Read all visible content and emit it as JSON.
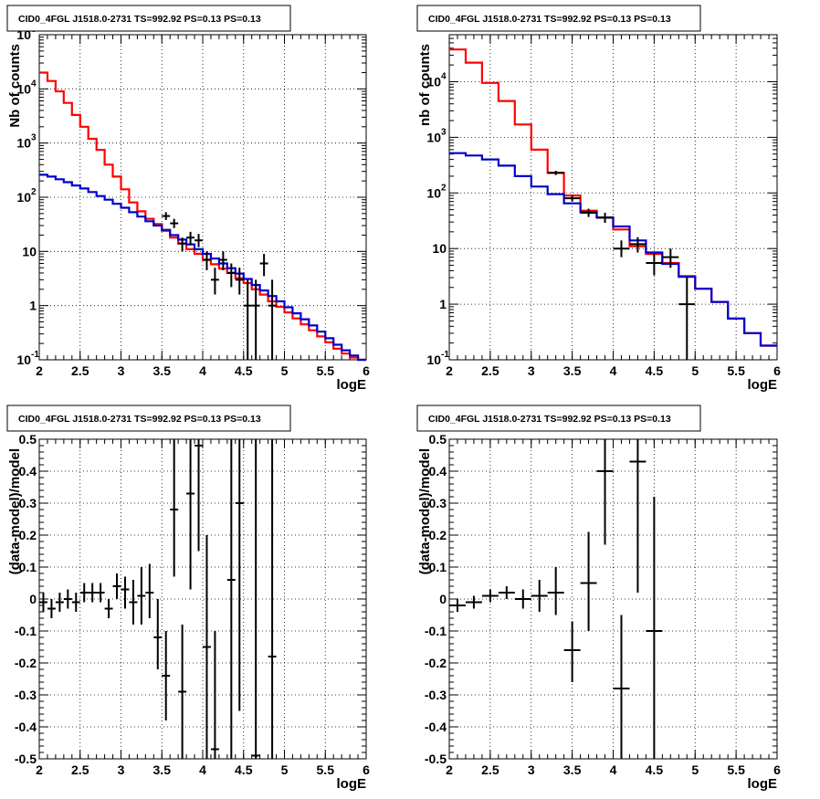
{
  "chart_data": [
    {
      "type": "line",
      "scale": "log",
      "title": "CID0_4FGL J1518.0-2731 TS=992.92 PS=0.13 PS=0.13",
      "xlabel": "logE",
      "ylabel": "Nb of counts",
      "xlim": [
        2,
        6
      ],
      "ylim": [
        0.1,
        100000
      ],
      "grid": true,
      "x_ticks": [
        "2",
        "2.5",
        "3",
        "3.5",
        "4",
        "4.5",
        "5",
        "5.5",
        "6"
      ],
      "y_ticks": [
        {
          "value": 0.1,
          "label": "10",
          "sup": "-1"
        },
        {
          "value": 1,
          "label": "1",
          "sup": ""
        },
        {
          "value": 10,
          "label": "10",
          "sup": ""
        },
        {
          "value": 100,
          "label": "10",
          "sup": "2"
        },
        {
          "value": 1000,
          "label": "10",
          "sup": "3"
        },
        {
          "value": 10000,
          "label": "10",
          "sup": "4"
        },
        {
          "value": 100000,
          "label": "10",
          "sup": "5"
        }
      ],
      "edges": [
        2.0,
        2.1,
        2.2,
        2.3,
        2.4,
        2.5,
        2.6,
        2.7,
        2.8,
        2.9,
        3.0,
        3.1,
        3.2,
        3.3,
        3.4,
        3.5,
        3.6,
        3.7,
        3.8,
        3.9,
        4.0,
        4.1,
        4.2,
        4.3,
        4.4,
        4.5,
        4.6,
        4.7,
        4.8,
        4.9,
        5.0,
        5.1,
        5.2,
        5.3,
        5.4,
        5.5,
        5.6,
        5.7,
        5.8,
        5.9,
        6.0
      ],
      "series": [
        {
          "color": "#ff0000",
          "style": "step",
          "values": [
            20000,
            14000,
            9000,
            5500,
            3300,
            2000,
            1200,
            750,
            400,
            240,
            140,
            80,
            55,
            40,
            32,
            24,
            18,
            14,
            11,
            9,
            7,
            5.8,
            4.8,
            4.0,
            3.2,
            2.6,
            2.0,
            1.6,
            1.2,
            0.95,
            0.75,
            0.58,
            0.45,
            0.35,
            0.27,
            0.21,
            0.16,
            0.13,
            0.11,
            0.1
          ]
        },
        {
          "color": "#0000cc",
          "style": "step",
          "values": [
            260,
            240,
            215,
            190,
            165,
            145,
            125,
            105,
            90,
            76,
            64,
            53,
            44,
            36,
            30,
            25,
            20,
            16.5,
            13.5,
            11,
            9,
            7.4,
            6,
            4.9,
            3.9,
            3.1,
            2.4,
            1.9,
            1.5,
            1.2,
            0.93,
            0.72,
            0.56,
            0.43,
            0.33,
            0.25,
            0.19,
            0.15,
            0.12,
            0.1
          ]
        }
      ],
      "points": [
        {
          "x": 3.55,
          "y": 45,
          "ylo": 38,
          "yhi": 53
        },
        {
          "x": 3.65,
          "y": 33,
          "ylo": 27,
          "yhi": 40
        },
        {
          "x": 3.75,
          "y": 14,
          "ylo": 10,
          "yhi": 18
        },
        {
          "x": 3.85,
          "y": 18,
          "ylo": 13,
          "yhi": 23
        },
        {
          "x": 3.95,
          "y": 16,
          "ylo": 12,
          "yhi": 21
        },
        {
          "x": 4.05,
          "y": 7,
          "ylo": 4.5,
          "yhi": 10
        },
        {
          "x": 4.15,
          "y": 3,
          "ylo": 1.6,
          "yhi": 5
        },
        {
          "x": 4.25,
          "y": 7,
          "ylo": 4.5,
          "yhi": 10
        },
        {
          "x": 4.35,
          "y": 4,
          "ylo": 2.2,
          "yhi": 6
        },
        {
          "x": 4.45,
          "y": 3,
          "ylo": 1.6,
          "yhi": 5
        },
        {
          "x": 4.55,
          "y": 1,
          "ylo": 0.1,
          "yhi": 3
        },
        {
          "x": 4.65,
          "y": 1,
          "ylo": 0.1,
          "yhi": 3
        },
        {
          "x": 4.75,
          "y": 6,
          "ylo": 3.5,
          "yhi": 9
        },
        {
          "x": 4.85,
          "y": 1,
          "ylo": 0.1,
          "yhi": 3
        }
      ]
    },
    {
      "type": "line",
      "scale": "log",
      "title": "CID0_4FGL J1518.0-2731 TS=992.92 PS=0.13 PS=0.13",
      "xlabel": "logE",
      "ylabel": "nb of counts",
      "xlim": [
        2,
        6
      ],
      "ylim": [
        0.1,
        70000
      ],
      "grid": true,
      "x_ticks": [
        "2",
        "2.5",
        "3",
        "3.5",
        "4",
        "4.5",
        "5",
        "5.5",
        "6"
      ],
      "y_ticks": [
        {
          "value": 0.1,
          "label": "10",
          "sup": "-1"
        },
        {
          "value": 1,
          "label": "1",
          "sup": ""
        },
        {
          "value": 10,
          "label": "10",
          "sup": ""
        },
        {
          "value": 100,
          "label": "10",
          "sup": "2"
        },
        {
          "value": 1000,
          "label": "10",
          "sup": "3"
        },
        {
          "value": 10000,
          "label": "10",
          "sup": "4"
        }
      ],
      "edges": [
        2.0,
        2.2,
        2.4,
        2.6,
        2.8,
        3.0,
        3.2,
        3.4,
        3.6,
        3.8,
        4.0,
        4.2,
        4.4,
        4.6,
        4.8,
        5.0,
        5.2,
        5.4,
        5.6,
        5.8,
        6.0
      ],
      "series": [
        {
          "color": "#ff0000",
          "style": "step",
          "values": [
            38000,
            22000,
            9500,
            4500,
            1700,
            600,
            230,
            90,
            48,
            36,
            22,
            11,
            8,
            5.5,
            3.2,
            1.9,
            1.1,
            0.55,
            0.3,
            0.18
          ]
        },
        {
          "color": "#0000cc",
          "style": "step",
          "values": [
            520,
            470,
            400,
            310,
            200,
            130,
            95,
            65,
            45,
            36,
            25,
            14,
            8.5,
            5.3,
            3.1,
            1.9,
            1.1,
            0.55,
            0.3,
            0.18
          ]
        }
      ],
      "points": [
        {
          "x": 3.3,
          "y": 230,
          "ylo": 210,
          "yhi": 250
        },
        {
          "x": 3.5,
          "y": 80,
          "ylo": 70,
          "yhi": 90
        },
        {
          "x": 3.7,
          "y": 44,
          "ylo": 37,
          "yhi": 52
        },
        {
          "x": 3.9,
          "y": 36,
          "ylo": 29,
          "yhi": 44
        },
        {
          "x": 4.1,
          "y": 10,
          "ylo": 7,
          "yhi": 14
        },
        {
          "x": 4.3,
          "y": 12,
          "ylo": 8.5,
          "yhi": 16
        },
        {
          "x": 4.5,
          "y": 5.5,
          "ylo": 3.3,
          "yhi": 8
        },
        {
          "x": 4.7,
          "y": 7,
          "ylo": 4.5,
          "yhi": 10
        },
        {
          "x": 4.9,
          "y": 1,
          "ylo": 0.1,
          "yhi": 3
        }
      ]
    },
    {
      "type": "scatter",
      "scale": "linear",
      "title": "CID0_4FGL J1518.0-2731 TS=992.92 PS=0.13 PS=0.13",
      "xlabel": "logE",
      "ylabel": "(data-model)/model",
      "xlim": [
        2,
        6
      ],
      "ylim": [
        -0.5,
        0.5
      ],
      "grid": true,
      "x_ticks": [
        "2",
        "2.5",
        "3",
        "3.5",
        "4",
        "4.5",
        "5",
        "5.5",
        "6"
      ],
      "y_ticks": [
        {
          "value": -0.5,
          "label": "-0.5",
          "sup": ""
        },
        {
          "value": -0.4,
          "label": "-0.4",
          "sup": ""
        },
        {
          "value": -0.3,
          "label": "-0.3",
          "sup": ""
        },
        {
          "value": -0.2,
          "label": "-0.2",
          "sup": ""
        },
        {
          "value": -0.1,
          "label": "-0.1",
          "sup": ""
        },
        {
          "value": 0,
          "label": "0",
          "sup": ""
        },
        {
          "value": 0.1,
          "label": "0.1",
          "sup": ""
        },
        {
          "value": 0.2,
          "label": "0.2",
          "sup": ""
        },
        {
          "value": 0.3,
          "label": "0.3",
          "sup": ""
        },
        {
          "value": 0.4,
          "label": "0.4",
          "sup": ""
        },
        {
          "value": 0.5,
          "label": "0.5",
          "sup": ""
        }
      ],
      "halfwidth": 0.05,
      "points": [
        {
          "x": 2.05,
          "y": -0.01,
          "ylo": -0.04,
          "yhi": 0.02
        },
        {
          "x": 2.15,
          "y": -0.03,
          "ylo": -0.06,
          "yhi": 0.0
        },
        {
          "x": 2.25,
          "y": -0.01,
          "ylo": -0.04,
          "yhi": 0.02
        },
        {
          "x": 2.35,
          "y": 0.0,
          "ylo": -0.03,
          "yhi": 0.03
        },
        {
          "x": 2.45,
          "y": -0.01,
          "ylo": -0.04,
          "yhi": 0.02
        },
        {
          "x": 2.55,
          "y": 0.02,
          "ylo": -0.01,
          "yhi": 0.05
        },
        {
          "x": 2.65,
          "y": 0.02,
          "ylo": -0.01,
          "yhi": 0.05
        },
        {
          "x": 2.75,
          "y": 0.02,
          "ylo": -0.01,
          "yhi": 0.05
        },
        {
          "x": 2.85,
          "y": -0.03,
          "ylo": -0.06,
          "yhi": 0.0
        },
        {
          "x": 2.95,
          "y": 0.04,
          "ylo": 0.0,
          "yhi": 0.08
        },
        {
          "x": 3.05,
          "y": 0.03,
          "ylo": -0.03,
          "yhi": 0.07
        },
        {
          "x": 3.15,
          "y": -0.01,
          "ylo": -0.08,
          "yhi": 0.06
        },
        {
          "x": 3.25,
          "y": 0.01,
          "ylo": -0.08,
          "yhi": 0.1
        },
        {
          "x": 3.35,
          "y": 0.02,
          "ylo": -0.06,
          "yhi": 0.11
        },
        {
          "x": 3.45,
          "y": -0.12,
          "ylo": -0.22,
          "yhi": 0.0
        },
        {
          "x": 3.55,
          "y": -0.24,
          "ylo": -0.38,
          "yhi": -0.1
        },
        {
          "x": 3.65,
          "y": 0.28,
          "ylo": 0.07,
          "yhi": 0.5
        },
        {
          "x": 3.75,
          "y": -0.29,
          "ylo": -0.5,
          "yhi": -0.08
        },
        {
          "x": 3.85,
          "y": 0.33,
          "ylo": 0.03,
          "yhi": 0.5
        },
        {
          "x": 3.95,
          "y": 0.48,
          "ylo": 0.15,
          "yhi": 0.5
        },
        {
          "x": 4.05,
          "y": -0.15,
          "ylo": -0.5,
          "yhi": 0.2
        },
        {
          "x": 4.15,
          "y": -0.47,
          "ylo": -0.5,
          "yhi": -0.1
        },
        {
          "x": 4.35,
          "y": 0.06,
          "ylo": -0.5,
          "yhi": 0.5
        },
        {
          "x": 4.45,
          "y": 0.3,
          "ylo": -0.35,
          "yhi": 0.5
        },
        {
          "x": 4.65,
          "y": -0.49,
          "ylo": -0.5,
          "yhi": 0.5
        },
        {
          "x": 4.85,
          "y": -0.18,
          "ylo": -0.5,
          "yhi": 0.5
        }
      ]
    },
    {
      "type": "scatter",
      "scale": "linear",
      "title": "CID0_4FGL J1518.0-2731 TS=992.92 PS=0.13 PS=0.13",
      "xlabel": "logE",
      "ylabel": "(data-model)/model",
      "xlim": [
        2,
        6
      ],
      "ylim": [
        -0.5,
        0.5
      ],
      "grid": true,
      "x_ticks": [
        "2",
        "2.5",
        "3",
        "3.5",
        "4",
        "4.5",
        "5",
        "5.5",
        "6"
      ],
      "y_ticks": [
        {
          "value": -0.5,
          "label": "-0.5",
          "sup": ""
        },
        {
          "value": -0.4,
          "label": "-0.4",
          "sup": ""
        },
        {
          "value": -0.3,
          "label": "-0.3",
          "sup": ""
        },
        {
          "value": -0.2,
          "label": "-0.2",
          "sup": ""
        },
        {
          "value": -0.1,
          "label": "-0.1",
          "sup": ""
        },
        {
          "value": 0,
          "label": "0",
          "sup": ""
        },
        {
          "value": 0.1,
          "label": "0.1",
          "sup": ""
        },
        {
          "value": 0.2,
          "label": "0.2",
          "sup": ""
        },
        {
          "value": 0.3,
          "label": "0.3",
          "sup": ""
        },
        {
          "value": 0.4,
          "label": "0.4",
          "sup": ""
        },
        {
          "value": 0.5,
          "label": "0.5",
          "sup": ""
        }
      ],
      "halfwidth": 0.1,
      "points": [
        {
          "x": 2.1,
          "y": -0.02,
          "ylo": -0.04,
          "yhi": 0.0
        },
        {
          "x": 2.3,
          "y": -0.01,
          "ylo": -0.03,
          "yhi": 0.01
        },
        {
          "x": 2.5,
          "y": 0.01,
          "ylo": -0.01,
          "yhi": 0.03
        },
        {
          "x": 2.7,
          "y": 0.02,
          "ylo": 0.0,
          "yhi": 0.04
        },
        {
          "x": 2.9,
          "y": 0.0,
          "ylo": -0.03,
          "yhi": 0.03
        },
        {
          "x": 3.1,
          "y": 0.01,
          "ylo": -0.04,
          "yhi": 0.06
        },
        {
          "x": 3.3,
          "y": 0.02,
          "ylo": -0.05,
          "yhi": 0.1
        },
        {
          "x": 3.5,
          "y": -0.16,
          "ylo": -0.26,
          "yhi": -0.07
        },
        {
          "x": 3.7,
          "y": 0.05,
          "ylo": -0.1,
          "yhi": 0.21
        },
        {
          "x": 3.9,
          "y": 0.4,
          "ylo": 0.17,
          "yhi": 0.5
        },
        {
          "x": 4.1,
          "y": -0.28,
          "ylo": -0.5,
          "yhi": -0.05
        },
        {
          "x": 4.3,
          "y": 0.43,
          "ylo": 0.02,
          "yhi": 0.5
        },
        {
          "x": 4.5,
          "y": -0.1,
          "ylo": -0.5,
          "yhi": 0.32
        }
      ]
    }
  ]
}
